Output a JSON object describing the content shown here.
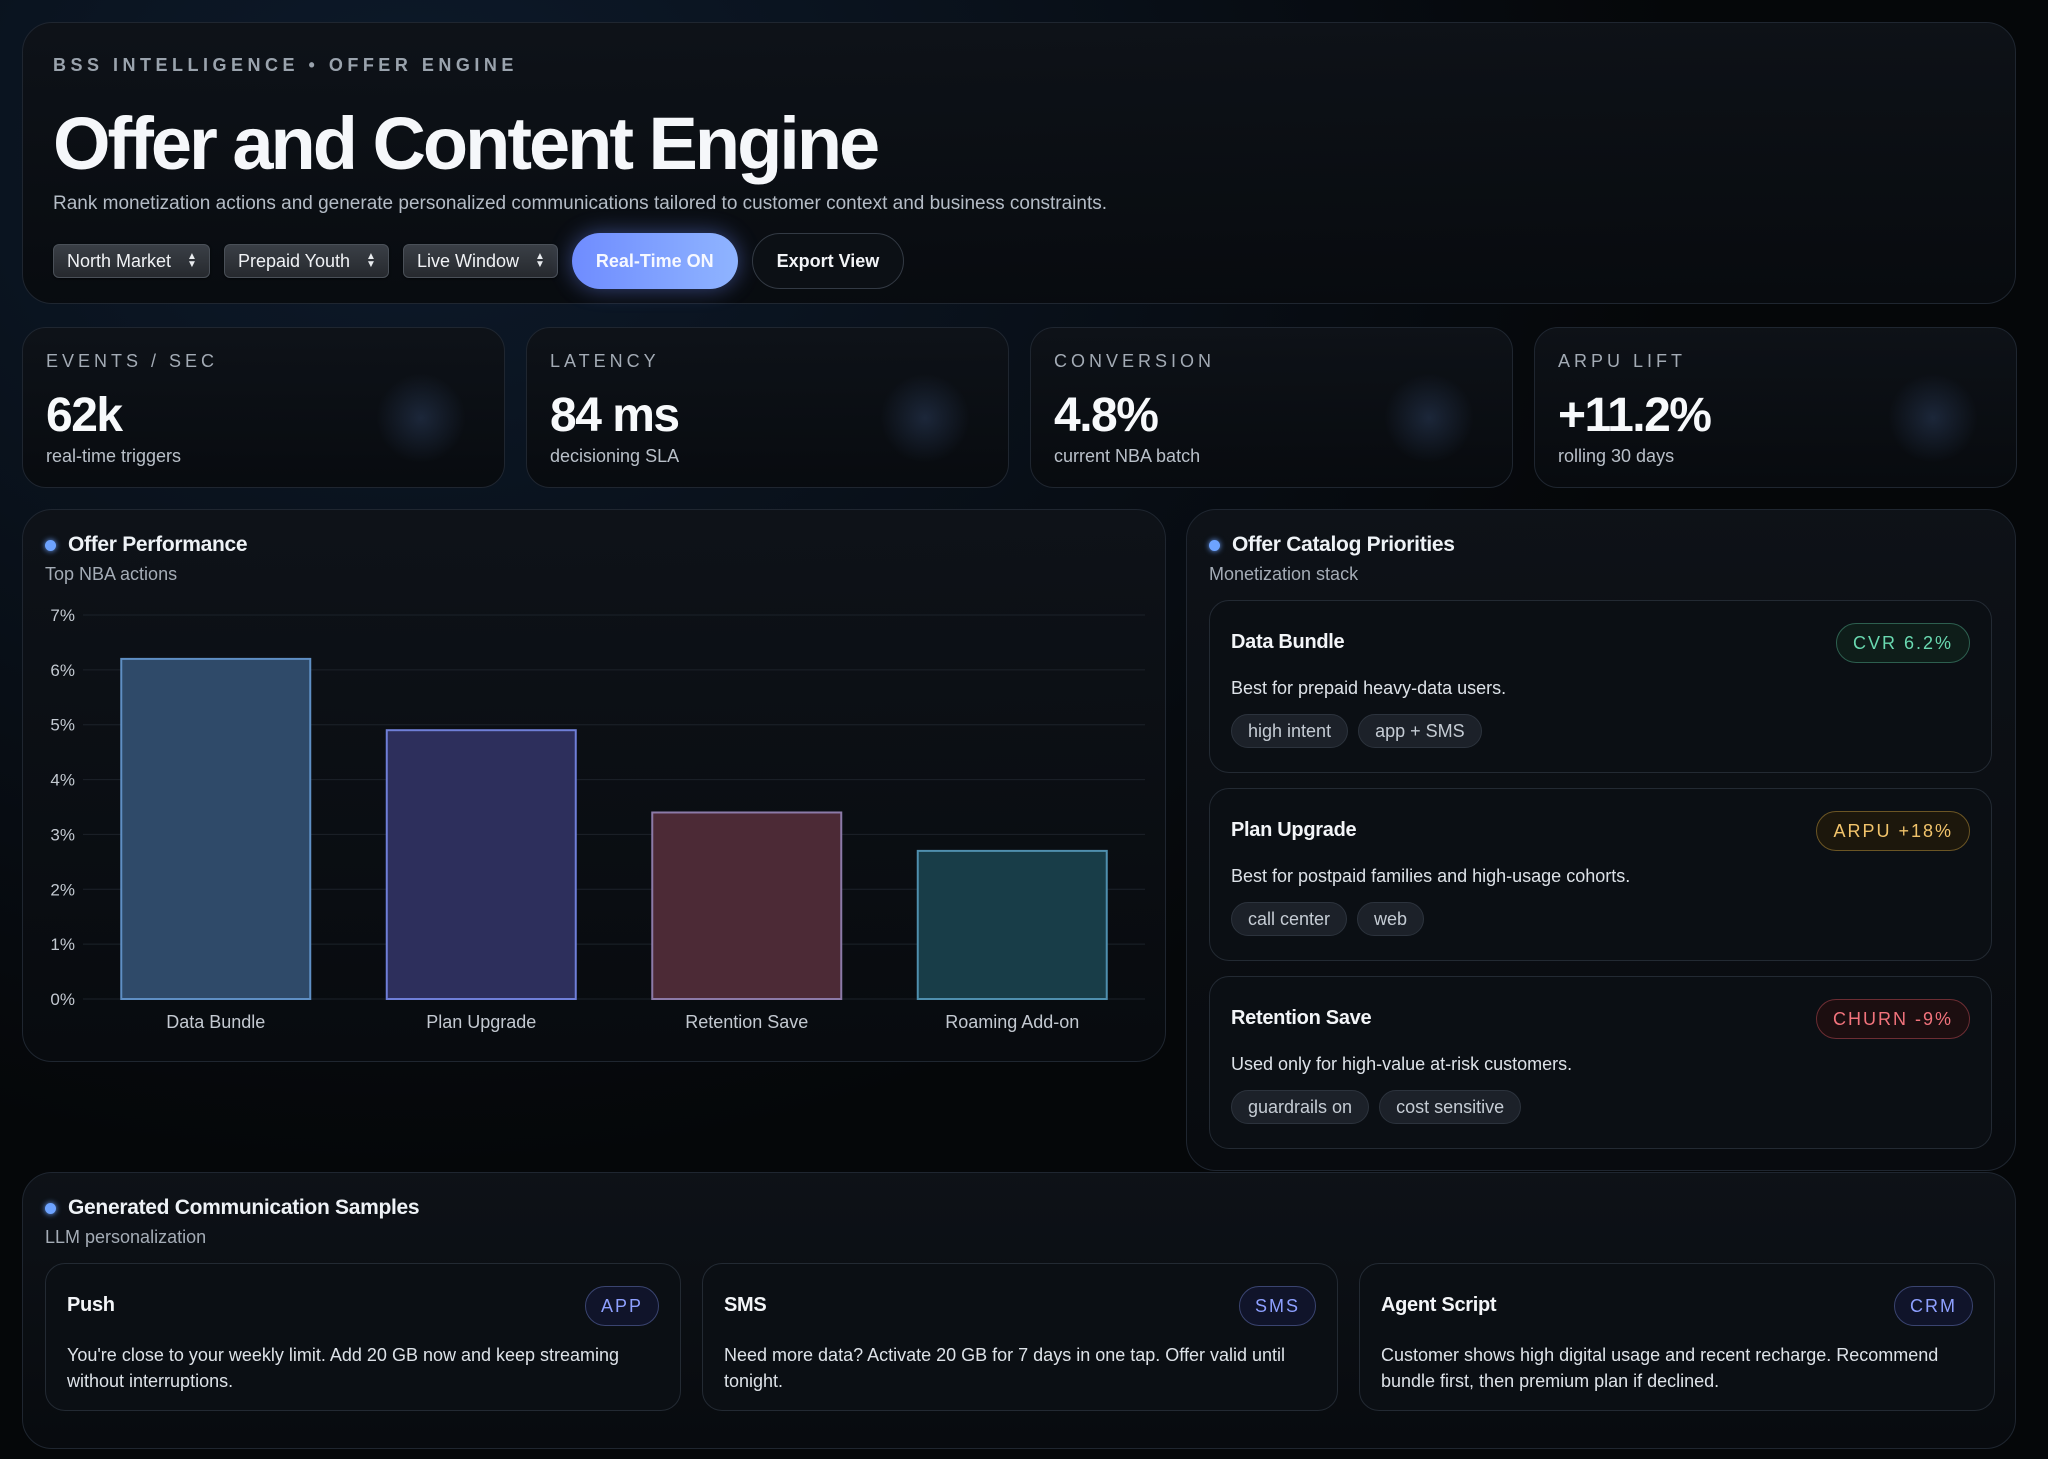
{
  "header": {
    "eyebrow": "BSS INTELLIGENCE • OFFER ENGINE",
    "title": "Offer and Content Engine",
    "subtitle": "Rank monetization actions and generate personalized communications tailored to customer context and business constraints.",
    "selects": [
      {
        "value": "North Market"
      },
      {
        "value": "Prepaid Youth"
      },
      {
        "value": "Live Window"
      }
    ],
    "realtime_label": "Real-Time ON",
    "export_label": "Export View"
  },
  "kpis": [
    {
      "label": "EVENTS / SEC",
      "value": "62k",
      "caption": "real-time triggers"
    },
    {
      "label": "LATENCY",
      "value": "84 ms",
      "caption": "decisioning SLA"
    },
    {
      "label": "CONVERSION",
      "value": "4.8%",
      "caption": "current NBA batch"
    },
    {
      "label": "ARPU LIFT",
      "value": "+11.2%",
      "caption": "rolling 30 days"
    }
  ],
  "offer_performance": {
    "title": "Offer Performance",
    "subtitle": "Top NBA actions"
  },
  "chart_data": {
    "type": "bar",
    "title": "Offer Performance",
    "subtitle": "Top NBA actions",
    "categories": [
      "Data Bundle",
      "Plan Upgrade",
      "Retention Save",
      "Roaming Add-on"
    ],
    "values": [
      6.2,
      4.9,
      3.4,
      2.7
    ],
    "unit": "%",
    "ylim": [
      0,
      7
    ],
    "yticks": [
      "0%",
      "1%",
      "2%",
      "3%",
      "4%",
      "5%",
      "6%",
      "7%"
    ],
    "grid": true,
    "colors": [
      {
        "fill": "#2f4a69",
        "stroke": "#5f8fc4"
      },
      {
        "fill": "#2d2f5c",
        "stroke": "#6f7fd8"
      },
      {
        "fill": "#4c2a36",
        "stroke": "#8c7aa8"
      },
      {
        "fill": "#183d48",
        "stroke": "#4f8fae"
      }
    ]
  },
  "catalog": {
    "title": "Offer Catalog Priorities",
    "subtitle": "Monetization stack",
    "offers": [
      {
        "name": "Data Bundle",
        "badge": "CVR 6.2%",
        "badge_color": "#69d9b0",
        "description": "Best for prepaid heavy-data users.",
        "tags": [
          "high intent",
          "app + SMS"
        ]
      },
      {
        "name": "Plan Upgrade",
        "badge": "ARPU +18%",
        "badge_color": "#f2c46b",
        "description": "Best for postpaid families and high-usage cohorts.",
        "tags": [
          "call center",
          "web"
        ]
      },
      {
        "name": "Retention Save",
        "badge": "CHURN -9%",
        "badge_color": "#f2737c",
        "description": "Used only for high-value at-risk customers.",
        "tags": [
          "guardrails on",
          "cost sensitive"
        ]
      }
    ]
  },
  "communications": {
    "title": "Generated Communication Samples",
    "subtitle": "LLM personalization",
    "samples": [
      {
        "channel": "Push",
        "badge": "APP",
        "text": "You're close to your weekly limit. Add 20 GB now and keep streaming without interruptions."
      },
      {
        "channel": "SMS",
        "badge": "SMS",
        "text": "Need more data? Activate 20 GB for 7 days in one tap. Offer valid until tonight."
      },
      {
        "channel": "Agent Script",
        "badge": "CRM",
        "text": "Customer shows high digital usage and recent recharge. Recommend bundle first, then premium plan if declined."
      }
    ]
  }
}
